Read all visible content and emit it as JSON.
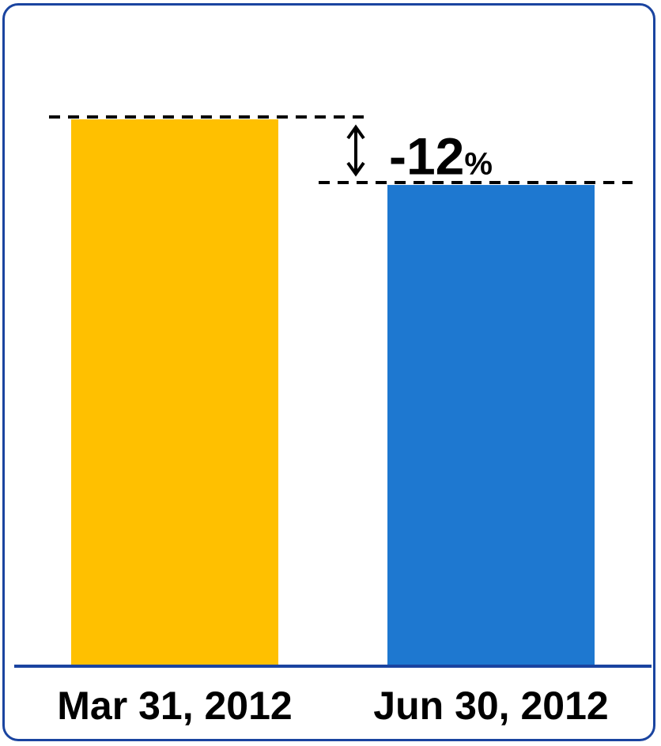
{
  "chart_data": {
    "type": "bar",
    "categories": [
      "Mar 31, 2012",
      "Jun 30, 2012"
    ],
    "values": [
      100,
      88
    ],
    "ylim": [
      0,
      100
    ],
    "title": "",
    "xlabel": "",
    "ylabel": "",
    "grid": false,
    "legend": "none",
    "colors": [
      "#ffc000",
      "#1e78d0"
    ],
    "axis_color": "#1a44a0",
    "frame_color": "#1a44a0",
    "annotation": {
      "value": "-12",
      "unit": "%",
      "from_category": 0,
      "to_category": 1
    }
  }
}
